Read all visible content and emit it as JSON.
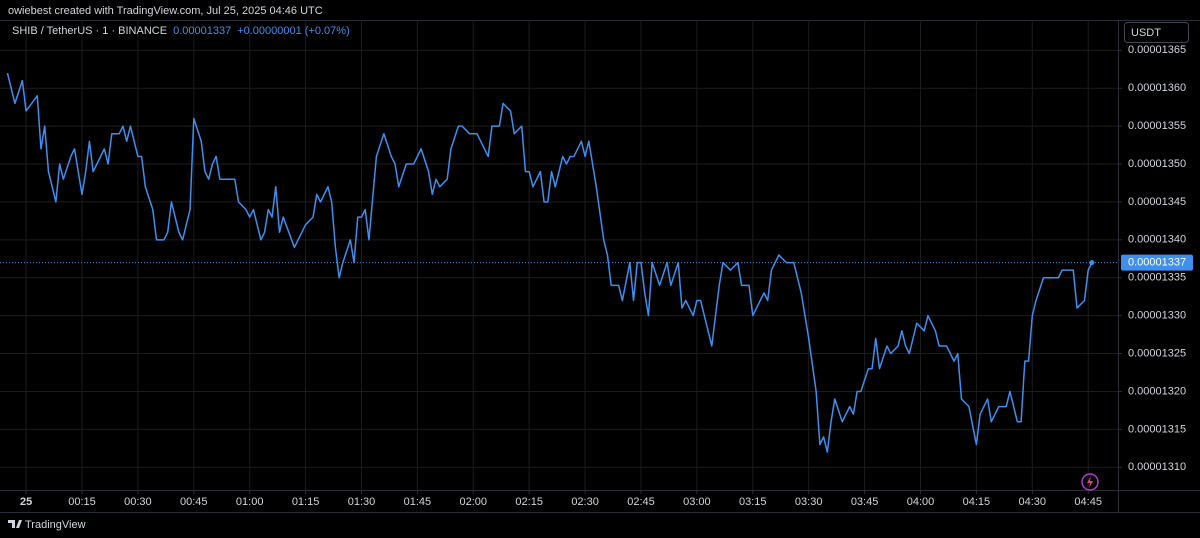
{
  "header": {
    "credit": "owiebest created with TradingView.com, Jul 25, 2025 04:46 UTC"
  },
  "chart_data": {
    "type": "line",
    "title": "SHIB / TetherUS · 1 · BINANCE",
    "change": "+0.00000001 (+0.07%)",
    "currency": "USDT",
    "color": "#3d8ff0",
    "grid": true,
    "last_price_line": true,
    "x": [
      -5,
      -3,
      -1,
      0,
      3,
      4,
      5,
      6,
      8,
      9,
      10,
      12,
      13,
      15,
      16,
      17,
      18,
      20,
      21,
      22,
      23,
      25,
      26,
      27,
      28,
      30,
      31,
      32,
      34,
      35,
      37,
      38,
      39,
      41,
      42,
      44,
      45,
      47,
      48,
      49,
      50,
      51,
      52,
      55,
      56,
      57,
      59,
      60,
      61,
      63,
      64,
      65,
      66,
      67,
      68,
      69,
      72,
      73,
      75,
      77,
      78,
      79,
      81,
      82,
      83,
      84,
      85,
      87,
      88,
      89,
      90,
      91,
      92,
      94,
      96,
      98,
      99,
      100,
      102,
      103,
      104,
      106,
      108,
      109,
      110,
      111,
      113,
      114,
      116,
      117,
      119,
      121,
      122,
      124,
      125,
      127,
      128,
      130,
      131,
      133,
      134,
      135,
      136,
      138,
      139,
      140,
      141,
      142,
      144,
      145,
      146,
      147,
      149,
      150,
      151,
      153,
      155,
      156,
      157,
      159,
      160,
      162,
      163,
      164,
      165,
      166,
      167,
      168,
      170,
      172,
      173,
      175,
      176,
      177,
      179,
      180,
      181,
      182,
      184,
      186,
      187,
      189,
      191,
      192,
      194,
      195,
      196,
      198,
      199,
      200,
      202,
      204,
      206,
      208,
      210,
      212,
      213,
      214,
      215,
      216,
      217,
      219,
      221,
      222,
      223,
      224,
      226,
      227,
      228,
      229,
      231,
      232,
      234,
      235,
      236,
      237,
      239,
      241,
      242,
      244,
      245,
      247,
      249,
      250,
      251,
      253,
      255,
      256,
      258,
      259,
      261,
      263,
      264,
      266,
      267,
      268,
      269,
      270,
      271,
      273,
      274,
      276,
      277,
      278,
      280,
      281,
      282,
      284,
      285,
      286
    ],
    "values": [
      1.362e-05,
      1.358e-05,
      1.361e-05,
      1.357e-05,
      1.359e-05,
      1.352e-05,
      1.355e-05,
      1.349e-05,
      1.345e-05,
      1.35e-05,
      1.348e-05,
      1.351e-05,
      1.352e-05,
      1.346e-05,
      1.349e-05,
      1.353e-05,
      1.349e-05,
      1.351e-05,
      1.352e-05,
      1.35e-05,
      1.354e-05,
      1.354e-05,
      1.355e-05,
      1.353e-05,
      1.355e-05,
      1.351e-05,
      1.351e-05,
      1.347e-05,
      1.344e-05,
      1.34e-05,
      1.34e-05,
      1.341e-05,
      1.345e-05,
      1.341e-05,
      1.34e-05,
      1.344e-05,
      1.356e-05,
      1.353e-05,
      1.349e-05,
      1.348e-05,
      1.35e-05,
      1.351e-05,
      1.348e-05,
      1.348e-05,
      1.348e-05,
      1.345e-05,
      1.344e-05,
      1.343e-05,
      1.344e-05,
      1.34e-05,
      1.341e-05,
      1.344e-05,
      1.343e-05,
      1.347e-05,
      1.341e-05,
      1.343e-05,
      1.339e-05,
      1.34e-05,
      1.342e-05,
      1.343e-05,
      1.346e-05,
      1.345e-05,
      1.347e-05,
      1.345e-05,
      1.339e-05,
      1.335e-05,
      1.337e-05,
      1.34e-05,
      1.337e-05,
      1.343e-05,
      1.343e-05,
      1.344e-05,
      1.34e-05,
      1.351e-05,
      1.354e-05,
      1.351e-05,
      1.35e-05,
      1.347e-05,
      1.35e-05,
      1.35e-05,
      1.35e-05,
      1.352e-05,
      1.349e-05,
      1.346e-05,
      1.348e-05,
      1.347e-05,
      1.348e-05,
      1.352e-05,
      1.355e-05,
      1.355e-05,
      1.354e-05,
      1.354e-05,
      1.353e-05,
      1.351e-05,
      1.355e-05,
      1.355e-05,
      1.358e-05,
      1.357e-05,
      1.354e-05,
      1.355e-05,
      1.349e-05,
      1.349e-05,
      1.347e-05,
      1.349e-05,
      1.345e-05,
      1.345e-05,
      1.349e-05,
      1.347e-05,
      1.351e-05,
      1.35e-05,
      1.351e-05,
      1.351e-05,
      1.353e-05,
      1.351e-05,
      1.353e-05,
      1.347e-05,
      1.34e-05,
      1.338e-05,
      1.334e-05,
      1.334e-05,
      1.332e-05,
      1.337e-05,
      1.332e-05,
      1.337e-05,
      1.337e-05,
      1.333e-05,
      1.33e-05,
      1.337e-05,
      1.334e-05,
      1.337e-05,
      1.334e-05,
      1.337e-05,
      1.331e-05,
      1.332e-05,
      1.33e-05,
      1.332e-05,
      1.332e-05,
      1.33e-05,
      1.326e-05,
      1.334e-05,
      1.337e-05,
      1.336e-05,
      1.337e-05,
      1.334e-05,
      1.334e-05,
      1.33e-05,
      1.331e-05,
      1.333e-05,
      1.332e-05,
      1.336e-05,
      1.338e-05,
      1.337e-05,
      1.337e-05,
      1.333e-05,
      1.327e-05,
      1.32e-05,
      1.313e-05,
      1.314e-05,
      1.312e-05,
      1.316e-05,
      1.319e-05,
      1.316e-05,
      1.318e-05,
      1.317e-05,
      1.32e-05,
      1.32e-05,
      1.323e-05,
      1.323e-05,
      1.327e-05,
      1.323e-05,
      1.326e-05,
      1.325e-05,
      1.326e-05,
      1.328e-05,
      1.326e-05,
      1.325e-05,
      1.329e-05,
      1.328e-05,
      1.33e-05,
      1.328e-05,
      1.326e-05,
      1.326e-05,
      1.324e-05,
      1.325e-05,
      1.319e-05,
      1.318e-05,
      1.313e-05,
      1.317e-05,
      1.319e-05,
      1.316e-05,
      1.318e-05,
      1.318e-05,
      1.32e-05,
      1.316e-05,
      1.316e-05,
      1.324e-05,
      1.324e-05,
      1.33e-05,
      1.332e-05,
      1.335e-05,
      1.335e-05,
      1.335e-05,
      1.335e-05,
      1.336e-05,
      1.336e-05,
      1.336e-05,
      1.331e-05,
      1.332e-05,
      1.336e-05,
      1.337e-05
    ],
    "xlim": [
      -7,
      293
    ],
    "xticks": [
      {
        "value": 0,
        "label": "25"
      },
      {
        "value": 15,
        "label": "00:15"
      },
      {
        "value": 30,
        "label": "00:30"
      },
      {
        "value": 45,
        "label": "00:45"
      },
      {
        "value": 60,
        "label": "01:00"
      },
      {
        "value": 75,
        "label": "01:15"
      },
      {
        "value": 90,
        "label": "01:30"
      },
      {
        "value": 105,
        "label": "01:45"
      },
      {
        "value": 120,
        "label": "02:00"
      },
      {
        "value": 135,
        "label": "02:15"
      },
      {
        "value": 150,
        "label": "02:30"
      },
      {
        "value": 165,
        "label": "02:45"
      },
      {
        "value": 180,
        "label": "03:00"
      },
      {
        "value": 195,
        "label": "03:15"
      },
      {
        "value": 210,
        "label": "03:30"
      },
      {
        "value": 225,
        "label": "03:45"
      },
      {
        "value": 240,
        "label": "04:00"
      },
      {
        "value": 255,
        "label": "04:15"
      },
      {
        "value": 270,
        "label": "04:30"
      },
      {
        "value": 285,
        "label": "04:45"
      }
    ],
    "ylim": [
      1.307e-05,
      1.369e-05
    ],
    "yticks": [
      {
        "value": 1.31e-05,
        "label": "0.00001310"
      },
      1.315e-05,
      {
        "value": 1.32e-05,
        "label": "0.00001320"
      },
      1.325e-05,
      {
        "value": 1.33e-05,
        "label": "0.00001330"
      },
      1.335e-05,
      {
        "value": 1.34e-05,
        "label": "0.00001340"
      },
      1.345e-05,
      {
        "value": 1.35e-05,
        "label": "0.00001350"
      },
      1.355e-05,
      {
        "value": 1.36e-05,
        "label": "0.00001360"
      },
      1.365e-05
    ]
  },
  "footer": {
    "brand": "TradingView"
  }
}
